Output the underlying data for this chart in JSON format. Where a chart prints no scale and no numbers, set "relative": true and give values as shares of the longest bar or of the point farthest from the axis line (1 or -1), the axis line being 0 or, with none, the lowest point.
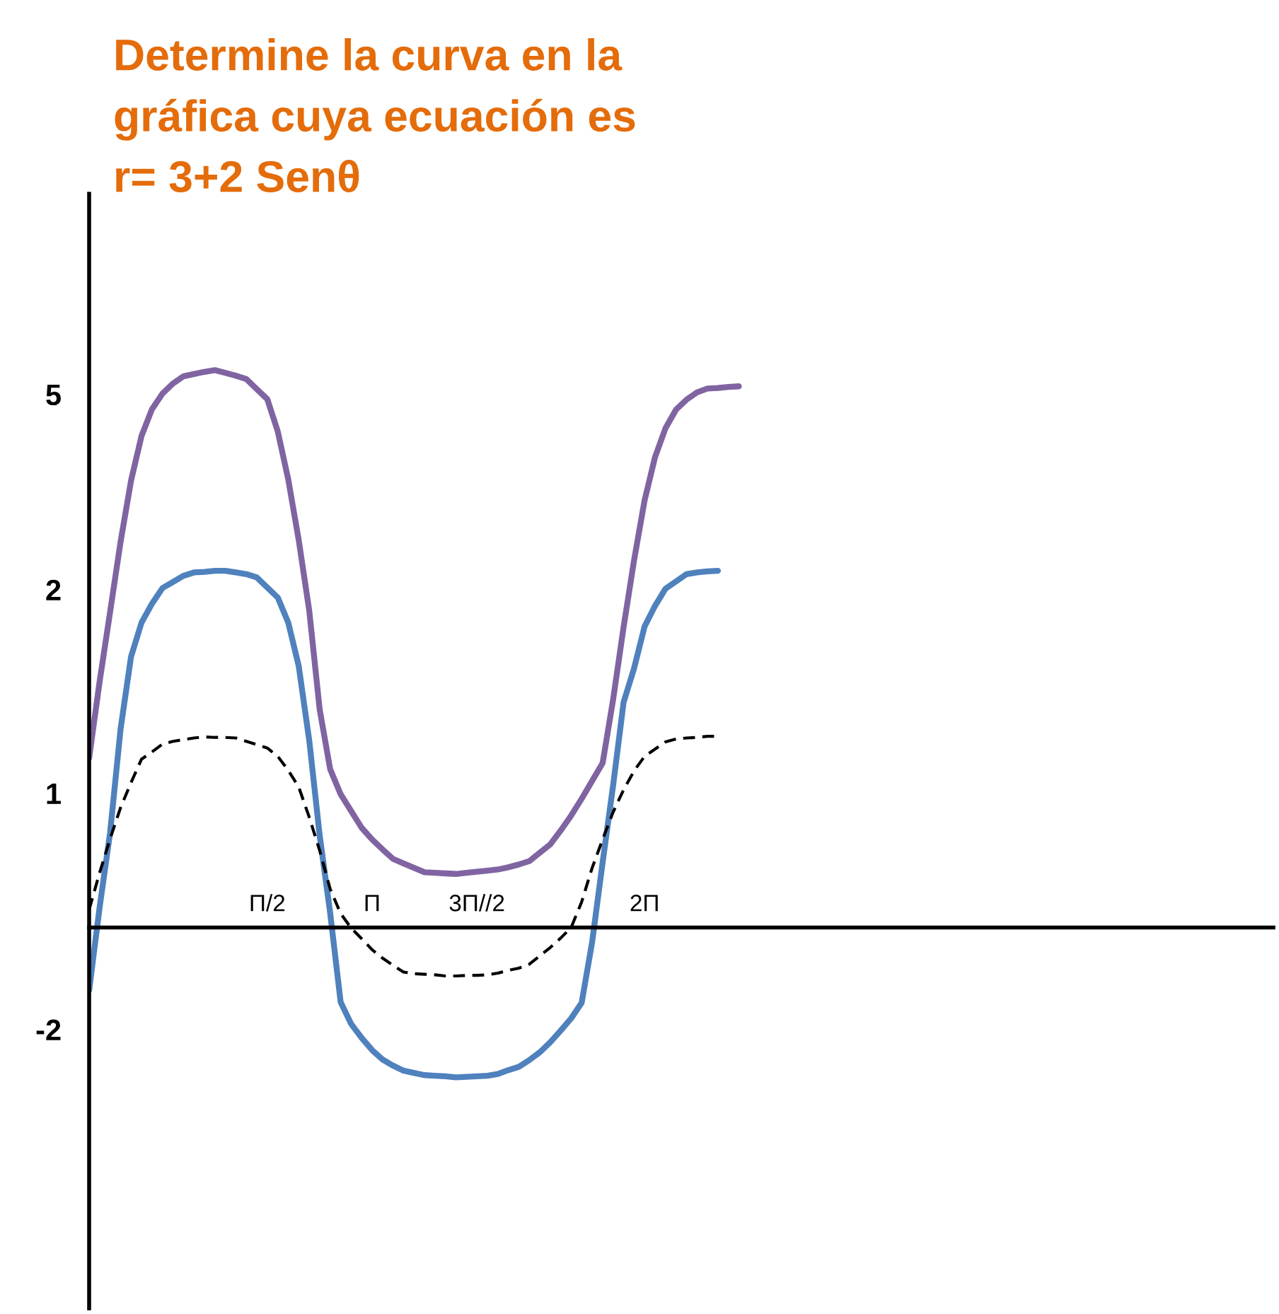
{
  "chart_data": {
    "type": "line",
    "title": "Determine la curva en la\ngráfica cuya ecuación es\nr= 3+2 Senθ",
    "relative": true,
    "categories": [
      null,
      null,
      null,
      null,
      null,
      null,
      null,
      null,
      null,
      null,
      null,
      null,
      null,
      null,
      null,
      null,
      null,
      "Π/2",
      null,
      null,
      null,
      null,
      null,
      null,
      null,
      null,
      null,
      "Π",
      null,
      null,
      null,
      null,
      null,
      null,
      null,
      null,
      null,
      "3Π//2",
      null,
      null,
      null,
      null,
      null,
      null,
      null,
      null,
      null,
      null,
      null,
      null,
      null,
      null,
      null,
      "2Π",
      null,
      null,
      null,
      null,
      null,
      null,
      null,
      null,
      null,
      null,
      null,
      null,
      null,
      null,
      null,
      null,
      null,
      null,
      null,
      null,
      null,
      null,
      null,
      null,
      null,
      null,
      null,
      null,
      null,
      null,
      null,
      null,
      null,
      null,
      null,
      null,
      null,
      null,
      null,
      null,
      null,
      null,
      null,
      null,
      null,
      null,
      null,
      null,
      null,
      null,
      null,
      null,
      null,
      null,
      null,
      null,
      null,
      null,
      null,
      null
    ],
    "annotations": [
      "5",
      "2",
      "1",
      "-2"
    ],
    "series": [
      {
        "color": "#8064a2",
        "line_style": "solid",
        "values": [
          0.304,
          0.441,
          0.566,
          0.692,
          0.802,
          0.882,
          0.93,
          0.958,
          0.976,
          0.989,
          0.993,
          0.997,
          1.0,
          0.995,
          0.99,
          0.984,
          0.966,
          0.948,
          0.89,
          0.804,
          0.695,
          0.569,
          0.391,
          0.284,
          0.239,
          0.209,
          0.179,
          0.158,
          0.14,
          0.123,
          0.115,
          0.107,
          0.099,
          0.098,
          0.097,
          0.096,
          0.098,
          0.1,
          0.102,
          0.104,
          0.108,
          0.113,
          0.119,
          0.134,
          0.149,
          0.174,
          0.201,
          0.231,
          0.263,
          0.295,
          0.409,
          0.539,
          0.659,
          0.766,
          0.844,
          0.896,
          0.929,
          0.947,
          0.96,
          0.967,
          0.968,
          0.97,
          0.971,
          null,
          null,
          null,
          null,
          null,
          null,
          null,
          null,
          null,
          null,
          null,
          null,
          null,
          null,
          null,
          null,
          null,
          null,
          null,
          null,
          null,
          null,
          null,
          null,
          null,
          null,
          null,
          null,
          null,
          null,
          null,
          null,
          null,
          null,
          null,
          null,
          null,
          null,
          null,
          null,
          null,
          null,
          null,
          null,
          null,
          null,
          null,
          null,
          null,
          null,
          null
        ]
      },
      {
        "color": "#4f81bd",
        "line_style": "solid",
        "values": [
          -0.113,
          0.036,
          0.17,
          0.356,
          0.486,
          0.547,
          0.581,
          0.609,
          0.62,
          0.631,
          0.637,
          0.638,
          0.64,
          0.64,
          0.637,
          0.634,
          0.628,
          0.61,
          0.592,
          0.547,
          0.469,
          0.336,
          0.165,
          0.026,
          -0.134,
          -0.173,
          -0.198,
          -0.22,
          -0.237,
          -0.248,
          -0.257,
          -0.261,
          -0.265,
          -0.266,
          -0.267,
          -0.269,
          -0.268,
          -0.267,
          -0.266,
          -0.263,
          -0.256,
          -0.25,
          -0.238,
          -0.224,
          -0.206,
          -0.185,
          -0.163,
          -0.135,
          -0.026,
          0.117,
          0.255,
          0.404,
          0.465,
          0.54,
          0.577,
          0.608,
          0.621,
          0.634,
          0.637,
          0.639,
          0.64,
          null,
          null,
          null,
          null,
          null,
          null,
          null,
          null,
          null,
          null,
          null,
          null,
          null,
          null,
          null,
          null,
          null,
          null,
          null,
          null,
          null,
          null,
          null,
          null,
          null,
          null,
          null,
          null,
          null,
          null,
          null,
          null,
          null,
          null,
          null,
          null,
          null,
          null,
          null,
          null,
          null,
          null,
          null,
          null,
          null,
          null,
          null,
          null,
          null,
          null,
          null,
          null,
          null
        ]
      },
      {
        "color": "#000000",
        "line_style": "dashed",
        "values": [
          0.032,
          0.098,
          0.159,
          0.215,
          0.26,
          0.302,
          0.315,
          0.329,
          0.334,
          0.337,
          0.34,
          0.342,
          0.341,
          0.341,
          0.34,
          0.334,
          0.328,
          0.322,
          0.307,
          0.282,
          0.252,
          0.198,
          0.138,
          0.069,
          0.025,
          -0.001,
          -0.02,
          -0.04,
          -0.055,
          -0.068,
          -0.08,
          -0.083,
          -0.084,
          -0.085,
          -0.087,
          -0.087,
          -0.086,
          -0.086,
          -0.085,
          -0.082,
          -0.077,
          -0.073,
          -0.066,
          -0.051,
          -0.036,
          -0.019,
          0.0,
          0.046,
          0.107,
          0.158,
          0.207,
          0.247,
          0.281,
          0.307,
          0.32,
          0.333,
          0.338,
          0.34,
          0.341,
          0.343,
          0.343,
          null,
          null,
          null,
          null,
          null,
          null,
          null,
          null,
          null,
          null,
          null,
          null,
          null,
          null,
          null,
          null,
          null,
          null,
          null,
          null,
          null,
          null,
          null,
          null,
          null,
          null,
          null,
          null,
          null,
          null,
          null,
          null,
          null,
          null,
          null,
          null,
          null,
          null,
          null,
          null,
          null,
          null,
          null,
          null,
          null,
          null,
          null,
          null,
          null,
          null,
          null,
          null,
          null
        ]
      }
    ]
  }
}
